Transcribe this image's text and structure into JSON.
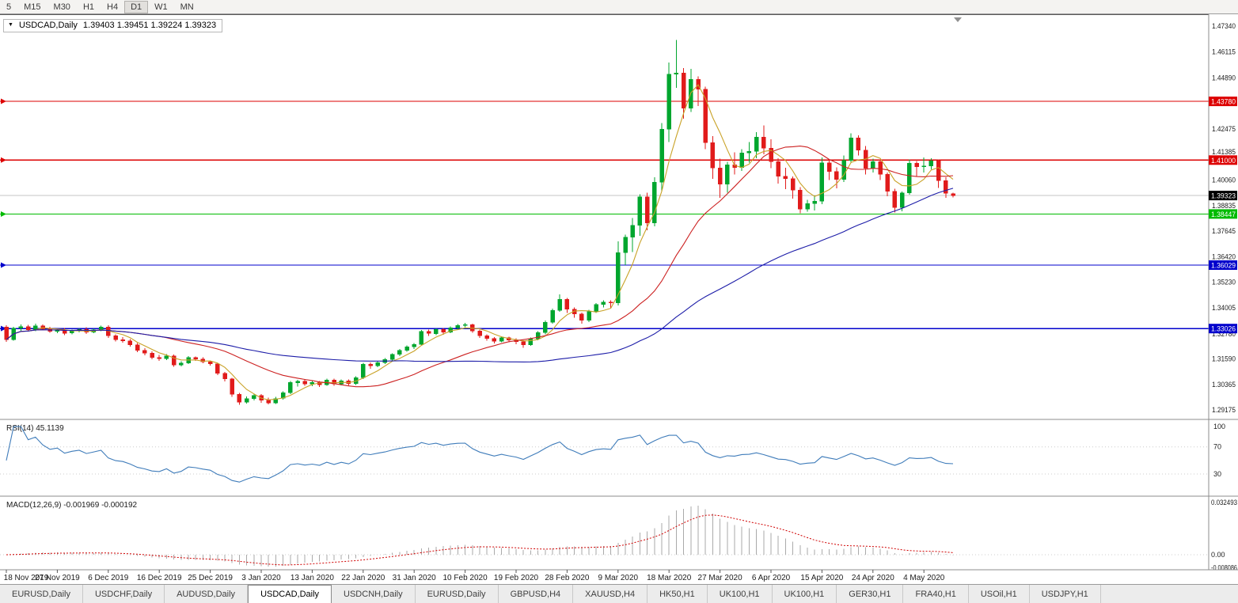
{
  "colors": {
    "bull": "#00a62e",
    "bear": "#e11b1b",
    "ma_fast": "#c9a227",
    "ma_mid": "#cc2020",
    "ma_slow": "#1c1ca8",
    "rsi_line": "#3f7cba",
    "macd_hist": "#aaaaaa",
    "macd_signal": "#d00000",
    "current_price_bg": "#000000",
    "grid_line": "#c4c4c4"
  },
  "toolbar": {
    "timeframes": [
      "5",
      "M15",
      "M30",
      "H1",
      "H4",
      "D1",
      "W1",
      "MN"
    ],
    "active": "D1"
  },
  "title_box": {
    "symbol": "USDCAD,Daily",
    "ohlc": "1.39403 1.39451 1.39224 1.39323"
  },
  "tabs": {
    "items": [
      "EURUSD,Daily",
      "USDCHF,Daily",
      "AUDUSD,Daily",
      "USDCAD,Daily",
      "USDCNH,Daily",
      "EURUSD,Daily",
      "GBPUSD,H4",
      "XAUUSD,H4",
      "HK50,H1",
      "UK100,H1",
      "UK100,H1",
      "GER30,H1",
      "FRA40,H1",
      "USOil,H1",
      "USDJPY,H1"
    ],
    "active_index": 3
  },
  "chart_data": {
    "type": "candlestick",
    "title": "USDCAD,Daily",
    "x_tick_labels": [
      "18 Nov 2019",
      "27 Nov 2019",
      "6 Dec 2019",
      "16 Dec 2019",
      "25 Dec 2019",
      "3 Jan 2020",
      "13 Jan 2020",
      "22 Jan 2020",
      "31 Jan 2020",
      "10 Feb 2020",
      "19 Feb 2020",
      "28 Feb 2020",
      "9 Mar 2020",
      "18 Mar 2020",
      "27 Mar 2020",
      "6 Apr 2020",
      "15 Apr 2020",
      "24 Apr 2020",
      "4 May 2020"
    ],
    "bars_per_x_tick": 7,
    "y_ticks": [
      "1.47340",
      "1.46115",
      "1.44890",
      "1.42475",
      "1.41385",
      "1.40060",
      "1.38835",
      "1.37645",
      "1.36420",
      "1.35230",
      "1.34005",
      "1.32780",
      "1.31590",
      "1.30365",
      "1.29175"
    ],
    "y_range_approx": [
      1.288,
      1.479
    ],
    "current_price": "1.39323",
    "horizontal_lines": [
      {
        "price": 1.4378,
        "label": "1.43780",
        "color": "#dd0000"
      },
      {
        "price": 1.41,
        "label": "1.41000",
        "color": "#dd0000"
      },
      {
        "price": 1.38447,
        "label": "1.38447",
        "color": "#00bb00"
      },
      {
        "price": 1.36029,
        "label": "1.36029",
        "color": "#0000cc"
      },
      {
        "price": 1.33026,
        "label": "1.33026",
        "color": "#0000cc"
      }
    ],
    "rsi": {
      "label": "RSI(14) 45.1139",
      "y_ticks": [
        "100",
        "70",
        "30"
      ]
    },
    "macd": {
      "label": "MACD(12,26,9) -0.001969 -0.000192",
      "y_ticks": [
        "0.032493",
        "0.00",
        "-0.008086"
      ]
    },
    "candles": [
      [
        1.331,
        1.3318,
        1.324,
        1.325
      ],
      [
        1.325,
        1.331,
        1.3245,
        1.3305
      ],
      [
        1.3305,
        1.3322,
        1.3292,
        1.3312
      ],
      [
        1.3312,
        1.332,
        1.3288,
        1.3297
      ],
      [
        1.3297,
        1.3326,
        1.329,
        1.3316
      ],
      [
        1.3316,
        1.3322,
        1.3295,
        1.3301
      ],
      [
        1.3301,
        1.331,
        1.3282,
        1.329
      ],
      [
        1.329,
        1.3302,
        1.328,
        1.3297
      ],
      [
        1.3297,
        1.3305,
        1.3272,
        1.3281
      ],
      [
        1.3281,
        1.3298,
        1.3275,
        1.3292
      ],
      [
        1.3292,
        1.3304,
        1.3285,
        1.3299
      ],
      [
        1.3299,
        1.3308,
        1.3278,
        1.3286
      ],
      [
        1.3286,
        1.3302,
        1.328,
        1.3297
      ],
      [
        1.3297,
        1.3317,
        1.3291,
        1.331
      ],
      [
        1.331,
        1.3318,
        1.3258,
        1.3268
      ],
      [
        1.3268,
        1.3276,
        1.3242,
        1.325
      ],
      [
        1.325,
        1.3262,
        1.3236,
        1.3244
      ],
      [
        1.3244,
        1.3252,
        1.3218,
        1.3226
      ],
      [
        1.3226,
        1.3234,
        1.319,
        1.3199
      ],
      [
        1.3199,
        1.321,
        1.3176,
        1.3186
      ],
      [
        1.3186,
        1.3194,
        1.3158,
        1.3166
      ],
      [
        1.3166,
        1.3178,
        1.315,
        1.316
      ],
      [
        1.316,
        1.3182,
        1.3154,
        1.3174
      ],
      [
        1.3174,
        1.318,
        1.3122,
        1.3131
      ],
      [
        1.3131,
        1.3148,
        1.3124,
        1.314
      ],
      [
        1.314,
        1.3172,
        1.3134,
        1.3165
      ],
      [
        1.3165,
        1.3171,
        1.315,
        1.3159
      ],
      [
        1.3159,
        1.3166,
        1.3138,
        1.3146
      ],
      [
        1.3146,
        1.3152,
        1.3128,
        1.3136
      ],
      [
        1.3136,
        1.3141,
        1.3082,
        1.3091
      ],
      [
        1.3091,
        1.3098,
        1.3052,
        1.3064
      ],
      [
        1.3064,
        1.307,
        1.298,
        1.2992
      ],
      [
        1.2992,
        1.2998,
        1.2942,
        1.2954
      ],
      [
        1.2954,
        1.2982,
        1.2948,
        1.2971
      ],
      [
        1.2971,
        1.2994,
        1.2962,
        1.2986
      ],
      [
        1.2986,
        1.2992,
        1.2952,
        1.2963
      ],
      [
        1.2963,
        1.2976,
        1.2944,
        1.2951
      ],
      [
        1.2951,
        1.2979,
        1.2946,
        1.2972
      ],
      [
        1.2972,
        1.3006,
        1.2966,
        1.2999
      ],
      [
        1.2999,
        1.3054,
        1.2992,
        1.3047
      ],
      [
        1.3047,
        1.306,
        1.3028,
        1.3054
      ],
      [
        1.3054,
        1.3061,
        1.3032,
        1.3041
      ],
      [
        1.3041,
        1.3055,
        1.303,
        1.3048
      ],
      [
        1.3048,
        1.3054,
        1.3026,
        1.3037
      ],
      [
        1.3037,
        1.3066,
        1.3031,
        1.306
      ],
      [
        1.306,
        1.3066,
        1.3032,
        1.304
      ],
      [
        1.304,
        1.3062,
        1.3034,
        1.3056
      ],
      [
        1.3056,
        1.3062,
        1.3033,
        1.3042
      ],
      [
        1.3042,
        1.3076,
        1.3036,
        1.307
      ],
      [
        1.307,
        1.314,
        1.3064,
        1.3134
      ],
      [
        1.3134,
        1.3142,
        1.3112,
        1.3127
      ],
      [
        1.3127,
        1.3148,
        1.312,
        1.3142
      ],
      [
        1.3142,
        1.3162,
        1.3134,
        1.3156
      ],
      [
        1.3156,
        1.3186,
        1.3148,
        1.318
      ],
      [
        1.318,
        1.3206,
        1.3172,
        1.32
      ],
      [
        1.32,
        1.3222,
        1.3192,
        1.3216
      ],
      [
        1.3216,
        1.3234,
        1.3206,
        1.3228
      ],
      [
        1.3228,
        1.3296,
        1.3222,
        1.329
      ],
      [
        1.329,
        1.3298,
        1.3268,
        1.3279
      ],
      [
        1.3279,
        1.3304,
        1.3272,
        1.3298
      ],
      [
        1.3298,
        1.3306,
        1.3274,
        1.3286
      ],
      [
        1.3286,
        1.3312,
        1.328,
        1.3306
      ],
      [
        1.3306,
        1.3324,
        1.3298,
        1.3318
      ],
      [
        1.3318,
        1.3329,
        1.3308,
        1.3321
      ],
      [
        1.3321,
        1.3326,
        1.3282,
        1.3291
      ],
      [
        1.3291,
        1.3297,
        1.3258,
        1.3269
      ],
      [
        1.3269,
        1.3276,
        1.3246,
        1.3256
      ],
      [
        1.3256,
        1.3262,
        1.3232,
        1.3243
      ],
      [
        1.3243,
        1.3266,
        1.3237,
        1.3259
      ],
      [
        1.3259,
        1.3264,
        1.3238,
        1.3249
      ],
      [
        1.3249,
        1.3256,
        1.3228,
        1.3241
      ],
      [
        1.3241,
        1.3248,
        1.3212,
        1.3226
      ],
      [
        1.3226,
        1.326,
        1.322,
        1.3253
      ],
      [
        1.3253,
        1.329,
        1.3247,
        1.3283
      ],
      [
        1.3283,
        1.334,
        1.3276,
        1.3332
      ],
      [
        1.3332,
        1.3396,
        1.3326,
        1.3388
      ],
      [
        1.3388,
        1.3465,
        1.3382,
        1.3441
      ],
      [
        1.3441,
        1.3448,
        1.3376,
        1.3394
      ],
      [
        1.3394,
        1.3402,
        1.3354,
        1.3371
      ],
      [
        1.3371,
        1.3378,
        1.3326,
        1.3341
      ],
      [
        1.3341,
        1.3392,
        1.3334,
        1.3383
      ],
      [
        1.3383,
        1.3424,
        1.3376,
        1.3416
      ],
      [
        1.3416,
        1.3437,
        1.3402,
        1.3428
      ],
      [
        1.3428,
        1.3436,
        1.3398,
        1.3424
      ],
      [
        1.3424,
        1.3716,
        1.3412,
        1.3662
      ],
      [
        1.3662,
        1.3748,
        1.3602,
        1.3736
      ],
      [
        1.3736,
        1.3826,
        1.3664,
        1.3792
      ],
      [
        1.3792,
        1.3938,
        1.3742,
        1.3926
      ],
      [
        1.3926,
        1.3946,
        1.3768,
        1.3802
      ],
      [
        1.3802,
        1.4018,
        1.3786,
        1.3996
      ],
      [
        1.3996,
        1.4276,
        1.3952,
        1.4246
      ],
      [
        1.4246,
        1.4562,
        1.4186,
        1.4506
      ],
      [
        1.4506,
        1.4668,
        1.4442,
        1.4512
      ],
      [
        1.4512,
        1.4536,
        1.4296,
        1.4346
      ],
      [
        1.4346,
        1.4532,
        1.4328,
        1.4482
      ],
      [
        1.4482,
        1.4496,
        1.4356,
        1.4436
      ],
      [
        1.4436,
        1.4448,
        1.4152,
        1.4182
      ],
      [
        1.4182,
        1.4214,
        1.4012,
        1.4062
      ],
      [
        1.4062,
        1.4106,
        1.3922,
        1.3986
      ],
      [
        1.3986,
        1.4092,
        1.3946,
        1.4078
      ],
      [
        1.4078,
        1.4136,
        1.4032,
        1.4064
      ],
      [
        1.4064,
        1.4152,
        1.4048,
        1.4134
      ],
      [
        1.4134,
        1.4186,
        1.4088,
        1.4142
      ],
      [
        1.4142,
        1.4232,
        1.4108,
        1.4208
      ],
      [
        1.4208,
        1.4264,
        1.4128,
        1.4156
      ],
      [
        1.4156,
        1.4198,
        1.4062,
        1.4092
      ],
      [
        1.4092,
        1.4108,
        1.3988,
        1.4024
      ],
      [
        1.4024,
        1.4064,
        1.3962,
        1.4012
      ],
      [
        1.4012,
        1.4022,
        1.3918,
        1.3958
      ],
      [
        1.3958,
        1.3972,
        1.3848,
        1.3868
      ],
      [
        1.3868,
        1.3912,
        1.3855,
        1.3894
      ],
      [
        1.3894,
        1.3932,
        1.3862,
        1.3906
      ],
      [
        1.3906,
        1.4112,
        1.3892,
        1.4088
      ],
      [
        1.4088,
        1.4102,
        1.4006,
        1.4046
      ],
      [
        1.4046,
        1.4066,
        1.3966,
        1.4008
      ],
      [
        1.4008,
        1.4122,
        1.3996,
        1.4098
      ],
      [
        1.4098,
        1.4226,
        1.4086,
        1.4206
      ],
      [
        1.4206,
        1.4218,
        1.4122,
        1.4148
      ],
      [
        1.4148,
        1.4166,
        1.4032,
        1.4062
      ],
      [
        1.4062,
        1.4106,
        1.4042,
        1.4092
      ],
      [
        1.4092,
        1.4102,
        1.4006,
        1.4032
      ],
      [
        1.4032,
        1.4042,
        1.3928,
        1.3952
      ],
      [
        1.3952,
        1.3964,
        1.3852,
        1.3876
      ],
      [
        1.3876,
        1.3952,
        1.3858,
        1.3944
      ],
      [
        1.3944,
        1.4102,
        1.3936,
        1.4086
      ],
      [
        1.4086,
        1.4096,
        1.4022,
        1.4068
      ],
      [
        1.4068,
        1.4112,
        1.4042,
        1.4072
      ],
      [
        1.4072,
        1.4108,
        1.4056,
        1.4096
      ],
      [
        1.4096,
        1.4102,
        1.3968,
        1.4002
      ],
      [
        1.4002,
        1.4018,
        1.3922,
        1.3942
      ],
      [
        1.39403,
        1.39451,
        1.39224,
        1.39323
      ]
    ]
  }
}
